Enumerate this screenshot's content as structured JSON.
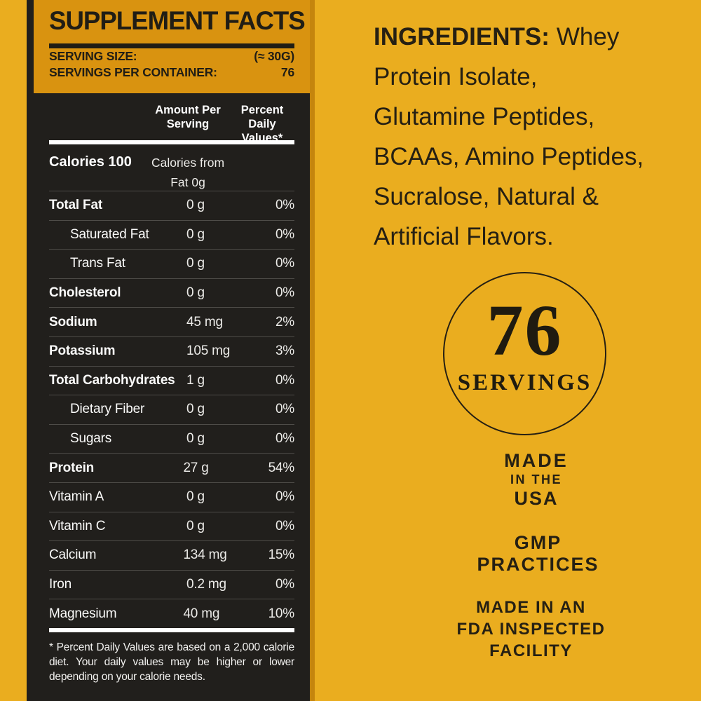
{
  "colors": {
    "page_bg": "#EAAD1F",
    "panel_bg": "#211F1C",
    "header_bg": "#D99310",
    "edge": "#C5850D",
    "dark_text": "#262013",
    "light_text": "#FFFFFF",
    "separator": "#4E4C48"
  },
  "label": {
    "title": "SUPPLEMENT FACTS",
    "serving_size_label": "SERVING SIZE:",
    "serving_size_value": "(≈ 30G)",
    "servings_per_container_label": "SERVINGS PER CONTAINER:",
    "servings_per_container_value": "76",
    "amount_header": "Amount Per Serving",
    "percent_header": "Percent Daily Values*",
    "calories_name": "Calories 100",
    "calories_sub": "Calories from Fat 0g",
    "rows": [
      {
        "name": "Total Fat",
        "amount": "0 g",
        "percent": "0%",
        "bold": true,
        "indent": false
      },
      {
        "name": "Saturated Fat",
        "amount": "0 g",
        "percent": "0%",
        "bold": false,
        "indent": true
      },
      {
        "name": "Trans Fat",
        "amount": "0 g",
        "percent": "0%",
        "bold": false,
        "indent": true
      },
      {
        "name": "Cholesterol",
        "amount": "0 g",
        "percent": "0%",
        "bold": true,
        "indent": false
      },
      {
        "name": "Sodium",
        "amount": "45 mg",
        "percent": "2%",
        "bold": true,
        "indent": false
      },
      {
        "name": "Potassium",
        "amount": "105 mg",
        "percent": "3%",
        "bold": true,
        "indent": false
      },
      {
        "name": "Total Carbohydrates",
        "amount": "1 g",
        "percent": "0%",
        "bold": true,
        "indent": false
      },
      {
        "name": "Dietary Fiber",
        "amount": "0 g",
        "percent": "0%",
        "bold": false,
        "indent": true
      },
      {
        "name": "Sugars",
        "amount": "0 g",
        "percent": "0%",
        "bold": false,
        "indent": true
      },
      {
        "name": "Protein",
        "amount": "27 g",
        "percent": "54%",
        "bold": true,
        "indent": false
      },
      {
        "name": "Vitamin A",
        "amount": "0 g",
        "percent": "0%",
        "bold": false,
        "indent": false
      },
      {
        "name": "Vitamin C",
        "amount": "0 g",
        "percent": "0%",
        "bold": false,
        "indent": false
      },
      {
        "name": "Calcium",
        "amount": "134 mg",
        "percent": "15%",
        "bold": false,
        "indent": false
      },
      {
        "name": "Iron",
        "amount": "0.2 mg",
        "percent": "0%",
        "bold": false,
        "indent": false
      },
      {
        "name": "Magnesium",
        "amount": "40 mg",
        "percent": "10%",
        "bold": false,
        "indent": false
      }
    ],
    "footnote": "* Percent Daily Values are based on a 2,000 calorie diet. Your daily values may be higher or lower depending on your calorie needs."
  },
  "right": {
    "ingredients_label": "INGREDIENTS:",
    "ingredients_lines": [
      "Whey",
      "Protein Isolate,",
      "Glutamine Peptides,",
      "BCAAs, Amino Peptides,",
      "Sucralose, Natural &",
      "Artificial Flavors."
    ],
    "badge_number": "76",
    "badge_label": "SERVINGS",
    "made_lines": [
      "MADE",
      "IN THE",
      "USA"
    ],
    "gmp_lines": [
      "GMP",
      "PRACTICES"
    ],
    "fda_lines": [
      "MADE IN AN",
      "FDA INSPECTED",
      "FACILITY"
    ]
  }
}
